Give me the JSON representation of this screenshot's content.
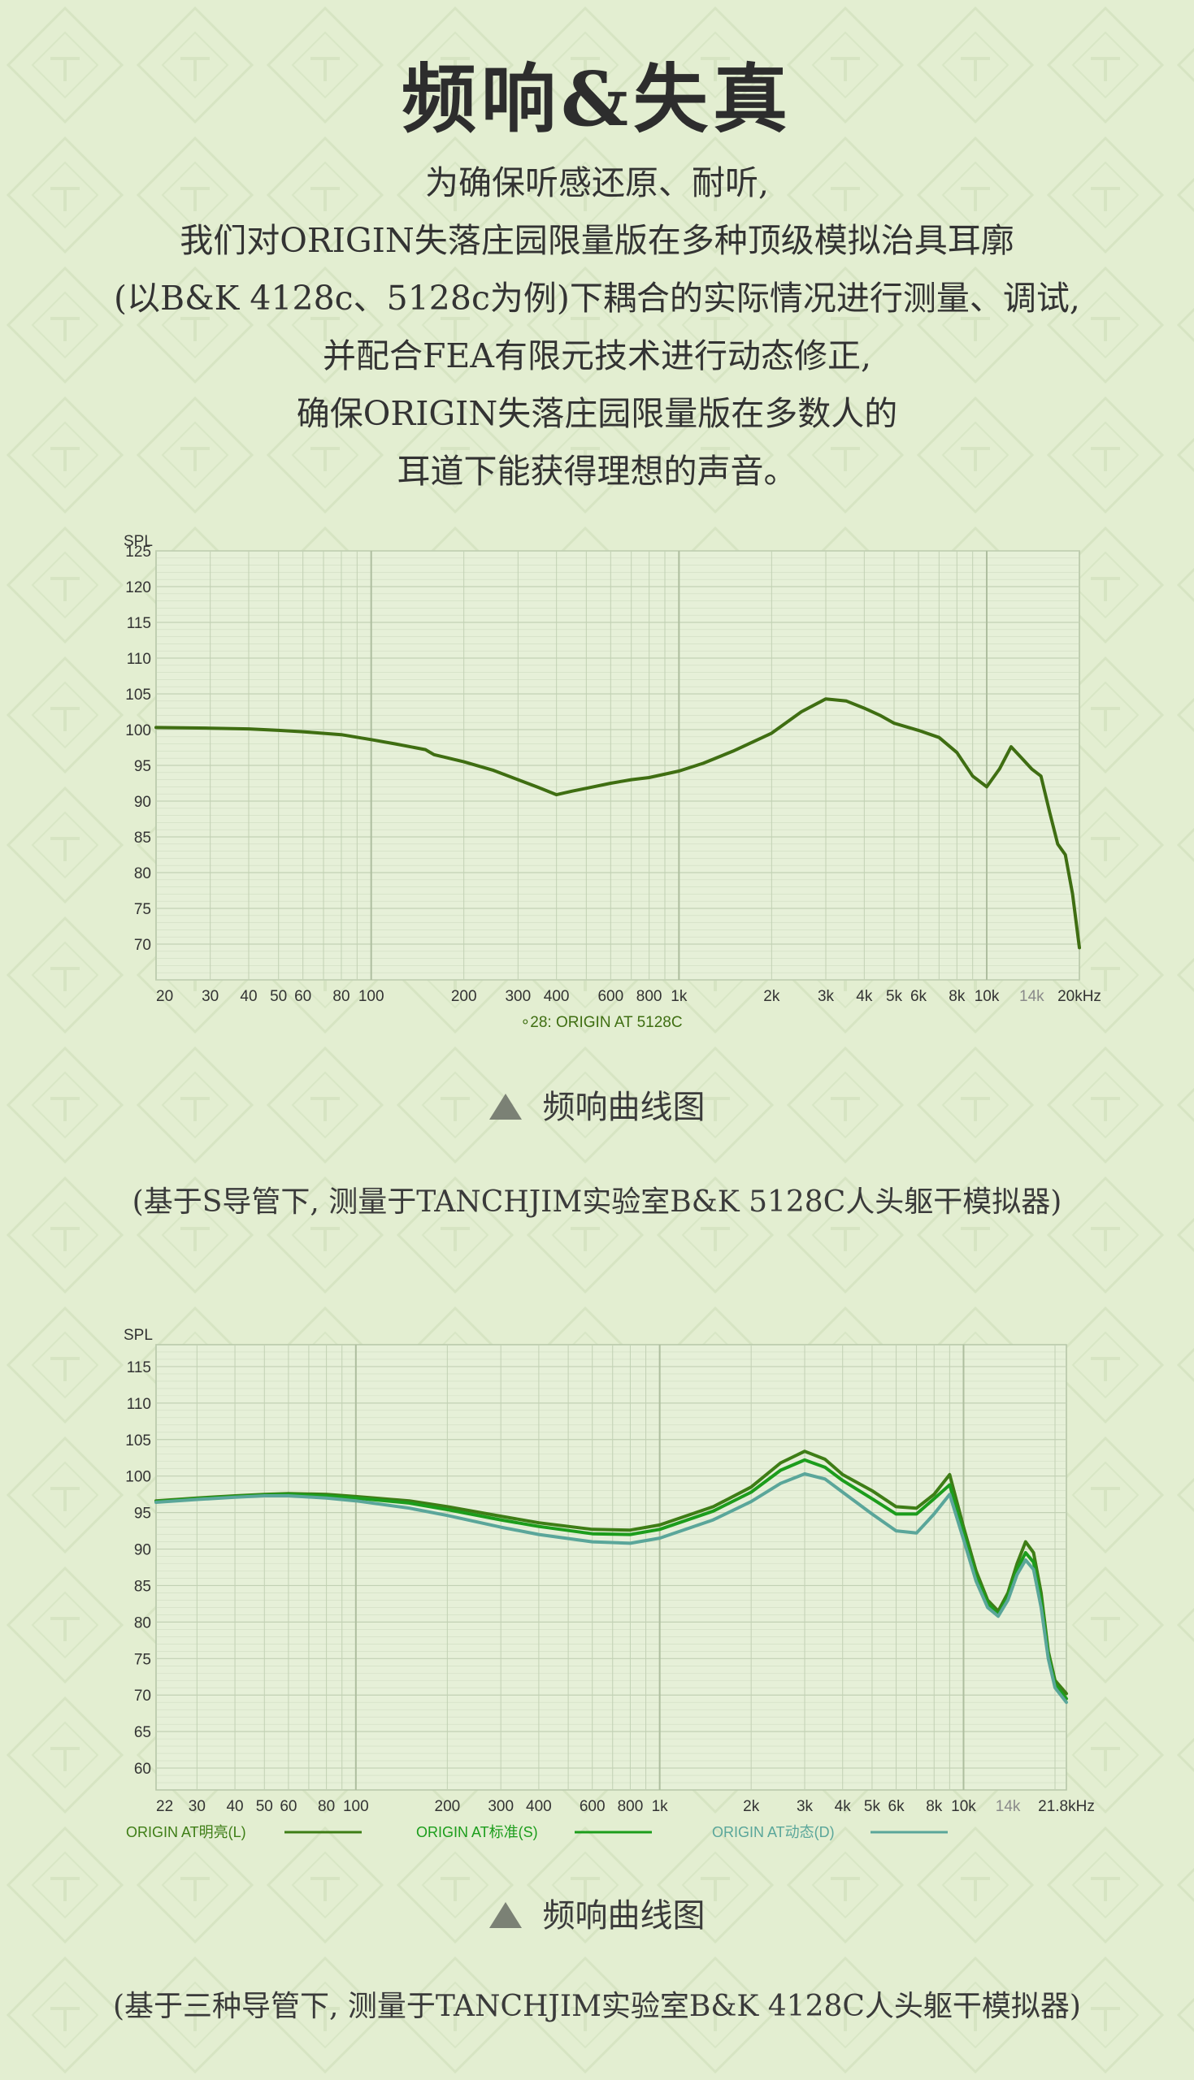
{
  "header": {
    "title": "频响&失真",
    "intro_lines": [
      "为确保听感还原、耐听,",
      "我们对ORIGIN失落庄园限量版在多种顶级模拟治具耳廓",
      "(以B&K 4128c、5128c为例)下耦合的实际情况进行测量、调试,",
      "并配合FEA有限元技术进行动态修正,",
      "确保ORIGIN失落庄园限量版在多数人的",
      "耳道下能获得理想的声音。"
    ]
  },
  "colors": {
    "background": "#e3eed1",
    "plot_background": "#e6f0d8",
    "grid": "#c2d1b4",
    "series_1": "#3f6e12",
    "series_L": "#3e7d16",
    "series_S": "#1c9d1c",
    "series_D": "#5aa69a"
  },
  "charts": [
    {
      "caption": "频响曲线图",
      "note": "(基于S导管下, 测量于TANCHJIM实验室B&K 5128C人头躯干模拟器)"
    },
    {
      "caption": "频响曲线图",
      "note": "(基于三种导管下, 测量于TANCHJIM实验室B&K 4128C人头躯干模拟器)"
    }
  ],
  "chart_data": [
    {
      "type": "line",
      "ylabel": "SPL",
      "xscale": "log",
      "xlim": [
        20,
        20000
      ],
      "ylim": [
        65,
        125
      ],
      "yticks": [
        70,
        75,
        80,
        85,
        90,
        95,
        100,
        105,
        110,
        115,
        120,
        125
      ],
      "xticks": [
        20,
        30,
        40,
        50,
        60,
        80,
        100,
        200,
        300,
        400,
        600,
        800,
        1000,
        2000,
        3000,
        4000,
        5000,
        6000,
        8000,
        10000,
        14000,
        20000
      ],
      "xtick_labels": [
        "20",
        "30",
        "40",
        "50",
        "60",
        "80",
        "100",
        "200",
        "300",
        "400",
        "600",
        "800",
        "1k",
        "2k",
        "3k",
        "4k",
        "5k",
        "6k",
        "8k",
        "10k",
        "14k",
        "20kHz"
      ],
      "grid": true,
      "legend_position": "bottom-center",
      "series": [
        {
          "name": "28: ORIGIN AT 5128C",
          "legend_label": "∘28: ORIGIN AT 5128C",
          "color": "#3f6e12",
          "points": [
            [
              20,
              100.3
            ],
            [
              30,
              100.2
            ],
            [
              40,
              100.1
            ],
            [
              50,
              99.9
            ],
            [
              60,
              99.7
            ],
            [
              80,
              99.3
            ],
            [
              100,
              98.6
            ],
            [
              120,
              98.0
            ],
            [
              150,
              97.2
            ],
            [
              160,
              96.5
            ],
            [
              200,
              95.5
            ],
            [
              250,
              94.3
            ],
            [
              300,
              93.0
            ],
            [
              350,
              91.9
            ],
            [
              400,
              90.9
            ],
            [
              450,
              91.4
            ],
            [
              500,
              91.8
            ],
            [
              600,
              92.5
            ],
            [
              700,
              93.0
            ],
            [
              800,
              93.3
            ],
            [
              1000,
              94.2
            ],
            [
              1200,
              95.3
            ],
            [
              1500,
              97.0
            ],
            [
              2000,
              99.5
            ],
            [
              2500,
              102.5
            ],
            [
              3000,
              104.3
            ],
            [
              3500,
              104.0
            ],
            [
              4000,
              103.0
            ],
            [
              4500,
              102.0
            ],
            [
              5000,
              100.9
            ],
            [
              6000,
              99.9
            ],
            [
              7000,
              98.9
            ],
            [
              8000,
              96.8
            ],
            [
              9000,
              93.5
            ],
            [
              10000,
              92.0
            ],
            [
              11000,
              94.5
            ],
            [
              12000,
              97.6
            ],
            [
              13000,
              96.0
            ],
            [
              14000,
              94.5
            ],
            [
              15000,
              93.5
            ],
            [
              16000,
              88.5
            ],
            [
              17000,
              84.0
            ],
            [
              18000,
              82.5
            ],
            [
              19000,
              77.0
            ],
            [
              20000,
              69.5
            ]
          ]
        }
      ]
    },
    {
      "type": "line",
      "ylabel": "SPL",
      "xscale": "log",
      "xlim": [
        22,
        21800
      ],
      "ylim": [
        57,
        118
      ],
      "yticks": [
        60,
        65,
        70,
        75,
        80,
        85,
        90,
        95,
        100,
        105,
        110,
        115
      ],
      "xticks": [
        22,
        30,
        40,
        50,
        60,
        80,
        100,
        200,
        300,
        400,
        600,
        800,
        1000,
        2000,
        3000,
        4000,
        5000,
        6000,
        8000,
        10000,
        14000,
        21800
      ],
      "xtick_labels": [
        "22",
        "30",
        "40",
        "50",
        "60",
        "80",
        "100",
        "200",
        "300",
        "400",
        "600",
        "800",
        "1k",
        "2k",
        "3k",
        "4k",
        "5k",
        "6k",
        "8k",
        "10k",
        "14k",
        "21.8kHz"
      ],
      "grid": true,
      "legend_position": "bottom",
      "series": [
        {
          "name": "ORIGIN AT明亮(L)",
          "color": "#3e7d16",
          "points": [
            [
              22,
              96.6
            ],
            [
              30,
              97.0
            ],
            [
              40,
              97.3
            ],
            [
              50,
              97.5
            ],
            [
              60,
              97.6
            ],
            [
              80,
              97.5
            ],
            [
              100,
              97.2
            ],
            [
              150,
              96.6
            ],
            [
              200,
              95.8
            ],
            [
              300,
              94.5
            ],
            [
              400,
              93.6
            ],
            [
              600,
              92.7
            ],
            [
              800,
              92.6
            ],
            [
              1000,
              93.3
            ],
            [
              1500,
              95.8
            ],
            [
              2000,
              98.5
            ],
            [
              2500,
              101.8
            ],
            [
              3000,
              103.4
            ],
            [
              3500,
              102.3
            ],
            [
              4000,
              100.2
            ],
            [
              5000,
              98.0
            ],
            [
              6000,
              95.8
            ],
            [
              7000,
              95.6
            ],
            [
              8000,
              97.5
            ],
            [
              9000,
              100.2
            ],
            [
              10000,
              93.0
            ],
            [
              11000,
              87.0
            ],
            [
              12000,
              83.0
            ],
            [
              13000,
              81.5
            ],
            [
              14000,
              84.0
            ],
            [
              15000,
              88.0
            ],
            [
              16000,
              91.0
            ],
            [
              17000,
              89.5
            ],
            [
              18000,
              84.0
            ],
            [
              19000,
              76.0
            ],
            [
              20000,
              72.0
            ],
            [
              21800,
              70.2
            ]
          ]
        },
        {
          "name": "ORIGIN AT标准(S)",
          "color": "#1c9d1c",
          "points": [
            [
              22,
              96.5
            ],
            [
              30,
              96.9
            ],
            [
              40,
              97.2
            ],
            [
              50,
              97.4
            ],
            [
              60,
              97.5
            ],
            [
              80,
              97.3
            ],
            [
              100,
              97.0
            ],
            [
              150,
              96.3
            ],
            [
              200,
              95.4
            ],
            [
              300,
              94.0
            ],
            [
              400,
              93.1
            ],
            [
              600,
              92.1
            ],
            [
              800,
              92.0
            ],
            [
              1000,
              92.7
            ],
            [
              1500,
              95.2
            ],
            [
              2000,
              97.8
            ],
            [
              2500,
              100.8
            ],
            [
              3000,
              102.2
            ],
            [
              3500,
              101.2
            ],
            [
              4000,
              99.4
            ],
            [
              5000,
              96.9
            ],
            [
              6000,
              94.8
            ],
            [
              7000,
              94.8
            ],
            [
              8000,
              96.9
            ],
            [
              9000,
              98.8
            ],
            [
              10000,
              92.2
            ],
            [
              11000,
              86.2
            ],
            [
              12000,
              82.6
            ],
            [
              13000,
              81.0
            ],
            [
              14000,
              83.5
            ],
            [
              15000,
              87.2
            ],
            [
              16000,
              89.5
            ],
            [
              17000,
              88.2
            ],
            [
              18000,
              83.0
            ],
            [
              19000,
              75.5
            ],
            [
              20000,
              71.5
            ],
            [
              21800,
              69.5
            ]
          ]
        },
        {
          "name": "ORIGIN AT动态(D)",
          "color": "#5aa69a",
          "points": [
            [
              22,
              96.4
            ],
            [
              30,
              96.8
            ],
            [
              40,
              97.1
            ],
            [
              50,
              97.3
            ],
            [
              60,
              97.3
            ],
            [
              80,
              97.0
            ],
            [
              100,
              96.6
            ],
            [
              150,
              95.6
            ],
            [
              200,
              94.6
            ],
            [
              300,
              93.0
            ],
            [
              400,
              92.0
            ],
            [
              600,
              91.0
            ],
            [
              800,
              90.8
            ],
            [
              1000,
              91.5
            ],
            [
              1500,
              94.0
            ],
            [
              2000,
              96.5
            ],
            [
              2500,
              99.0
            ],
            [
              3000,
              100.3
            ],
            [
              3500,
              99.6
            ],
            [
              4000,
              97.8
            ],
            [
              5000,
              94.8
            ],
            [
              6000,
              92.5
            ],
            [
              7000,
              92.2
            ],
            [
              8000,
              94.8
            ],
            [
              9000,
              97.5
            ],
            [
              10000,
              91.3
            ],
            [
              11000,
              85.6
            ],
            [
              12000,
              82.0
            ],
            [
              13000,
              80.8
            ],
            [
              14000,
              83.0
            ],
            [
              15000,
              86.5
            ],
            [
              16000,
              88.5
            ],
            [
              17000,
              87.2
            ],
            [
              18000,
              82.0
            ],
            [
              19000,
              75.0
            ],
            [
              20000,
              71.0
            ],
            [
              21800,
              69.0
            ]
          ]
        }
      ]
    }
  ]
}
